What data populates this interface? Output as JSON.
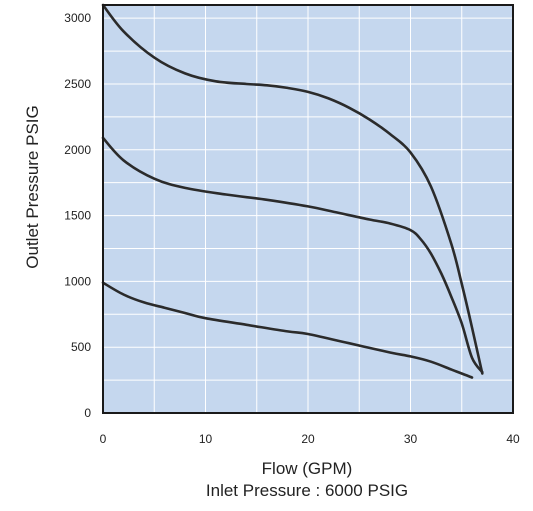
{
  "chart_data": {
    "type": "line",
    "xlabel": "Flow (GPM)",
    "subtitle": "Inlet Pressure : 6000 PSIG",
    "ylabel": "Outlet Pressure PSIG",
    "xlim": [
      0,
      40
    ],
    "ylim": [
      0,
      3100
    ],
    "x_ticks": [
      "0",
      "10",
      "20",
      "30",
      "40"
    ],
    "y_ticks": [
      "0",
      "500",
      "1000",
      "1500",
      "2000",
      "2500",
      "3000"
    ],
    "grid": true,
    "colors": {
      "plot_bg": "#c5d7ee",
      "grid": "#ffffff",
      "line": "#2b2b2b",
      "axis": "#1a1a1a"
    },
    "series": [
      {
        "x": [
          0,
          2,
          5,
          8,
          11,
          14,
          16,
          18,
          20,
          22,
          24,
          26,
          28,
          30,
          32,
          34,
          35,
          36,
          37
        ],
        "y": [
          3100,
          2900,
          2700,
          2580,
          2520,
          2500,
          2490,
          2470,
          2440,
          2390,
          2320,
          2230,
          2120,
          1980,
          1720,
          1280,
          980,
          650,
          300
        ]
      },
      {
        "x": [
          0,
          2,
          5,
          8,
          12,
          16,
          20,
          23,
          26,
          28,
          30,
          31,
          32,
          33,
          34,
          35,
          36,
          37
        ],
        "y": [
          2090,
          1920,
          1780,
          1710,
          1660,
          1620,
          1570,
          1520,
          1470,
          1440,
          1390,
          1320,
          1210,
          1060,
          880,
          680,
          420,
          310
        ]
      },
      {
        "x": [
          0,
          2,
          4,
          6,
          8,
          10,
          14,
          18,
          20,
          24,
          28,
          30,
          32,
          34,
          36
        ],
        "y": [
          990,
          900,
          840,
          800,
          760,
          720,
          670,
          620,
          600,
          530,
          460,
          430,
          390,
          330,
          270
        ]
      }
    ]
  }
}
